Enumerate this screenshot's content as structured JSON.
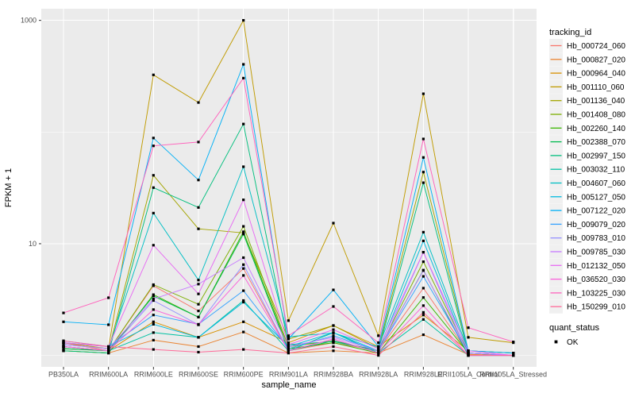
{
  "chart_data": {
    "type": "line",
    "title": "",
    "xlabel": "sample_name",
    "ylabel": "FPKM + 1",
    "y_scale": "log10",
    "y_axis_ticks": [
      {
        "label": "1000",
        "value": 1000
      },
      {
        "label": "10",
        "value": 10
      }
    ],
    "y_minor_gridlines": [
      100,
      1
    ],
    "ylim": [
      1,
      1100
    ],
    "grid": "on",
    "legend_position": "right",
    "legend_title": "tracking_id",
    "quant_legend": {
      "title": "quant_status",
      "entries": [
        "OK"
      ]
    },
    "point_shape": "black-square",
    "categories": [
      "PB350LA",
      "RRIM600LA",
      "RRIM600LE",
      "RRIM600SE",
      "RRIM600PE",
      "RRIM901LA",
      "RRIM928BA",
      "RRIM928LA",
      "RRIM928LE",
      "RRII105LA_Control",
      "RRII105LA_Stressed"
    ],
    "values_are": "FPKM + 1",
    "series": [
      {
        "name": "Hb_000724_060",
        "color": "#F8766D",
        "values": [
          1.3,
          1.1,
          4.2,
          2.5,
          6.0,
          1.1,
          1.3,
          1.1,
          4.0,
          1.05,
          1.0
        ]
      },
      {
        "name": "Hb_000827_020",
        "color": "#EA8331",
        "values": [
          1.1,
          1.05,
          1.37,
          1.2,
          1.62,
          1.05,
          1.1,
          1.05,
          1.53,
          1.02,
          1.0
        ]
      },
      {
        "name": "Hb_000964_040",
        "color": "#D89000",
        "values": [
          1.2,
          1.1,
          2.0,
          1.45,
          2.0,
          1.3,
          1.85,
          1.2,
          2.3,
          1.1,
          1.05
        ]
      },
      {
        "name": "Hb_001110_060",
        "color": "#C09B00",
        "values": [
          1.3,
          1.15,
          325,
          184,
          1000,
          2.05,
          15.3,
          1.5,
          220,
          1.45,
          1.3
        ]
      },
      {
        "name": "Hb_001136_040",
        "color": "#A3A500",
        "values": [
          1.2,
          1.1,
          41,
          13.6,
          12.5,
          1.4,
          1.85,
          1.15,
          43.8,
          1.1,
          1.05
        ]
      },
      {
        "name": "Hb_001408_080",
        "color": "#7CAE00",
        "values": [
          1.15,
          1.1,
          4.3,
          2.87,
          14.3,
          1.2,
          1.35,
          1.1,
          6.9,
          1.05,
          1.0
        ]
      },
      {
        "name": "Hb_002260_140",
        "color": "#39B600",
        "values": [
          1.1,
          1.05,
          3.5,
          2.2,
          12.8,
          1.15,
          1.3,
          1.05,
          3.3,
          1.05,
          1.0
        ]
      },
      {
        "name": "Hb_002388_070",
        "color": "#00BB4E",
        "values": [
          1.15,
          1.1,
          3.4,
          2.2,
          12.2,
          1.1,
          1.35,
          1.1,
          5.8,
          1.0,
          1.0
        ]
      },
      {
        "name": "Hb_002997_150",
        "color": "#00BF7D",
        "values": [
          1.1,
          1.05,
          31.8,
          21.1,
          118,
          1.25,
          1.33,
          1.1,
          35.2,
          1.05,
          1.0
        ]
      },
      {
        "name": "Hb_003032_110",
        "color": "#00C1A3",
        "values": [
          1.2,
          1.1,
          1.6,
          1.45,
          3.1,
          1.1,
          1.6,
          1.05,
          2.1,
          1.0,
          1.0
        ]
      },
      {
        "name": "Hb_004607_060",
        "color": "#00BFC4",
        "values": [
          1.25,
          1.15,
          18.8,
          4.73,
          48.9,
          1.47,
          1.59,
          1.19,
          12.7,
          1.1,
          1.05
        ]
      },
      {
        "name": "Hb_005127_050",
        "color": "#00BAE0",
        "values": [
          1.3,
          1.2,
          1.9,
          1.45,
          3.0,
          1.2,
          1.6,
          1.1,
          10.6,
          1.05,
          1.0
        ]
      },
      {
        "name": "Hb_007122_020",
        "color": "#00B0F6",
        "values": [
          2.0,
          1.88,
          88.5,
          37.2,
          404,
          1.4,
          3.86,
          1.2,
          59.2,
          1.1,
          1.05
        ]
      },
      {
        "name": "Hb_009079_020",
        "color": "#35A2FF",
        "values": [
          1.35,
          1.2,
          2.3,
          1.9,
          3.8,
          1.15,
          1.5,
          1.1,
          5.1,
          1.05,
          1.0
        ]
      },
      {
        "name": "Hb_009783_010",
        "color": "#9590FF",
        "values": [
          1.2,
          1.1,
          3.1,
          1.88,
          6.5,
          1.1,
          1.4,
          1.05,
          8.4,
          1.0,
          1.0
        ]
      },
      {
        "name": "Hb_009785_030",
        "color": "#C77CFF",
        "values": [
          1.25,
          1.15,
          3.2,
          4.35,
          7.5,
          1.2,
          1.45,
          1.1,
          5.75,
          1.05,
          1.0
        ]
      },
      {
        "name": "Hb_012132_050",
        "color": "#E76BF3",
        "values": [
          1.3,
          1.2,
          9.7,
          3.55,
          24.7,
          1.25,
          1.7,
          1.15,
          8.4,
          1.1,
          1.0
        ]
      },
      {
        "name": "Hb_036520_030",
        "color": "#FA62DB",
        "values": [
          1.2,
          1.1,
          2.57,
          1.88,
          5.2,
          1.1,
          1.4,
          1.05,
          2.79,
          1.0,
          1.0
        ]
      },
      {
        "name": "Hb_103225_030",
        "color": "#FF62BC",
        "values": [
          2.4,
          3.28,
          75.2,
          81.3,
          304,
          1.5,
          2.74,
          1.3,
          86.7,
          1.77,
          1.32
        ]
      },
      {
        "name": "Hb_150299_010",
        "color": "#FF6A98",
        "values": [
          1.35,
          1.2,
          1.13,
          1.07,
          1.13,
          1.05,
          1.2,
          1.0,
          2.43,
          1.0,
          1.0
        ]
      }
    ]
  },
  "colors": {
    "panel_bg": "#EBEBEB",
    "grid": "#FFFFFF",
    "tick_mark": "#333333",
    "tick_label": "#4D4D4D",
    "title_text": "#000000",
    "legend_key_bg": "#F0F0F0",
    "point": "#000000"
  }
}
